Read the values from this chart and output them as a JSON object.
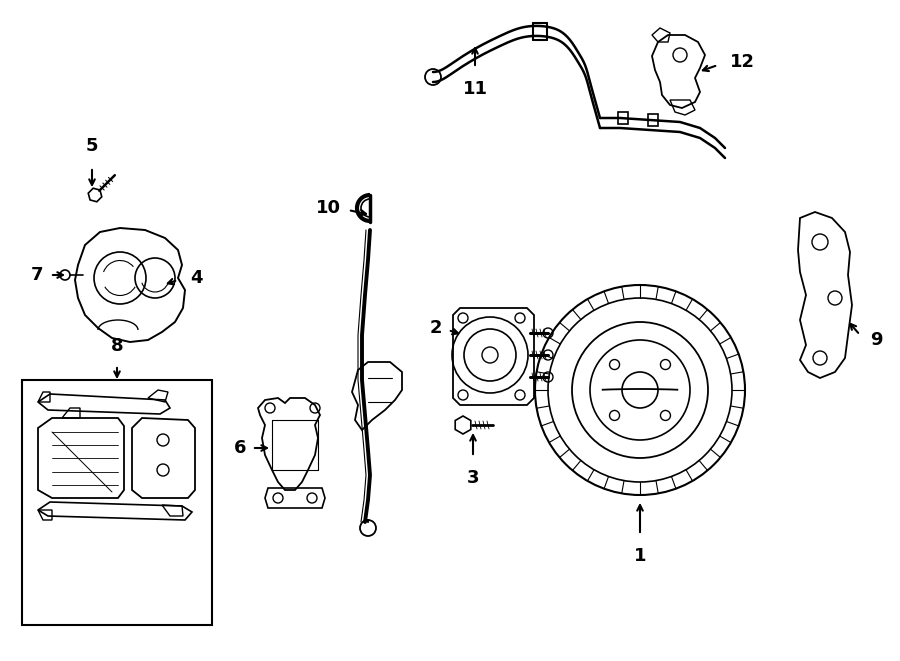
{
  "bg_color": "#ffffff",
  "line_color": "#000000",
  "lw": 1.3,
  "fig_width": 9.0,
  "fig_height": 6.61,
  "dpi": 100
}
